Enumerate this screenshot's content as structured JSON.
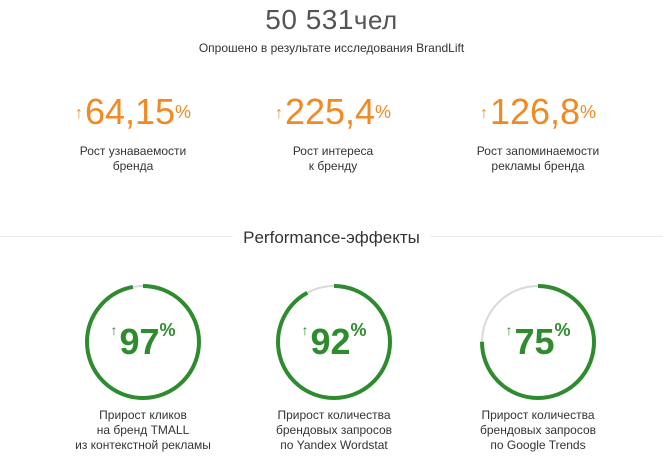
{
  "header": {
    "respondents_number": "50 531",
    "respondents_unit": "чел",
    "subtitle": "Опрошено в результате исследования BrandLift"
  },
  "brand_stats": [
    {
      "arrow": "↑",
      "value": "64,15",
      "unit": "%",
      "caption": "Рост узнаваемости\nбренда"
    },
    {
      "arrow": "↑",
      "value": "225,4",
      "unit": "%",
      "caption": "Рост интереса\nк бренду"
    },
    {
      "arrow": "↑",
      "value": "126,8",
      "unit": "%",
      "caption": "Рост запоминаемости\nрекламы бренда"
    }
  ],
  "performance": {
    "title": "Performance-эффекты",
    "items": [
      {
        "arrow": "↑",
        "value": "97",
        "unit": "%",
        "fraction": 0.97,
        "caption": "Прирост кликов\nна бренд TMALL\nиз контекстной рекламы"
      },
      {
        "arrow": "↑",
        "value": "92",
        "unit": "%",
        "fraction": 0.92,
        "caption": "Прирост количества\nбрендовых запросов\nпо Yandex Wordstat"
      },
      {
        "arrow": "↑",
        "value": "75",
        "unit": "%",
        "fraction": 0.75,
        "caption": "Прирост количества\nбрендовых запросов\nпо Google Trends"
      }
    ]
  },
  "colors": {
    "orange_accent": "#f08a24",
    "green_accent": "#2e8b2e",
    "ring_track": "#d9d9d9"
  }
}
